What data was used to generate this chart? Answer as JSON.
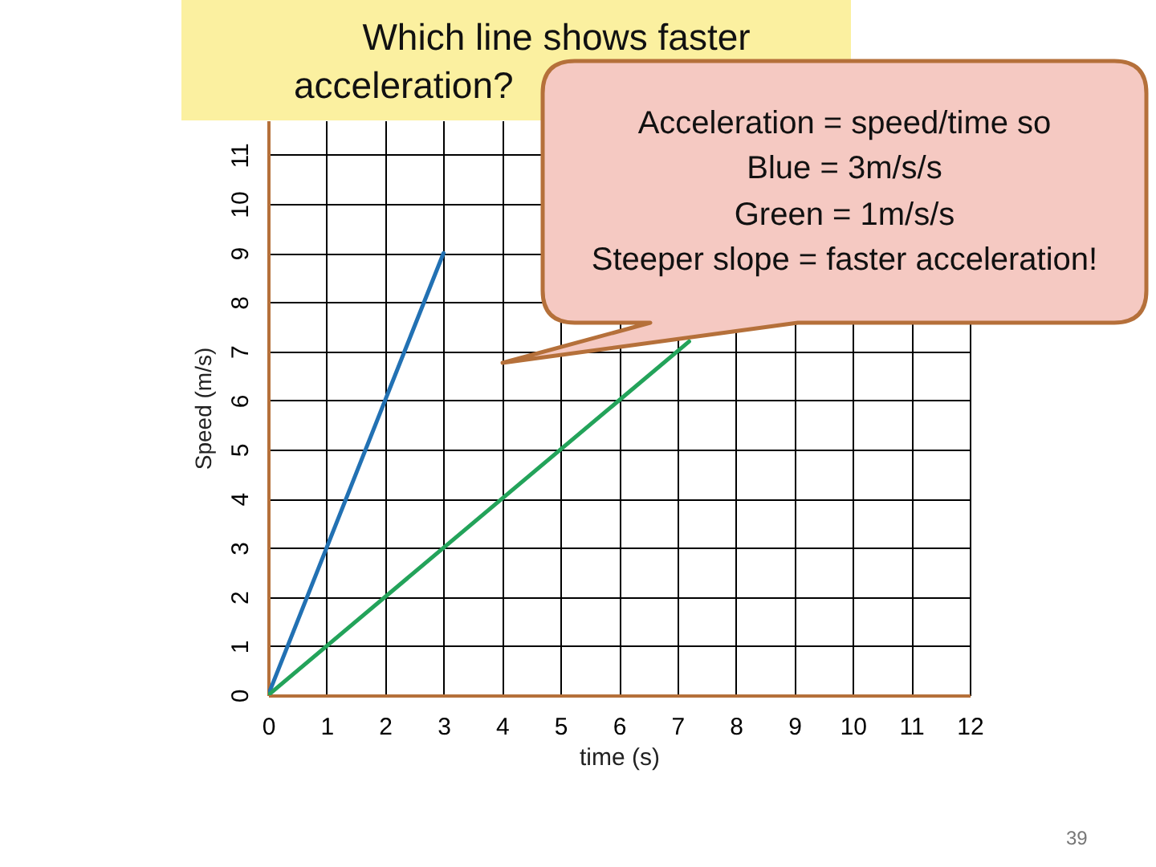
{
  "chart_data": {
    "type": "line",
    "title": "Which line shows faster acceleration?",
    "xlabel": "time (s)",
    "ylabel": "Speed (m/s)",
    "series": [
      {
        "color": "#2271b3",
        "x": [
          0,
          3
        ],
        "values": [
          0,
          9
        ]
      },
      {
        "color": "#23a35a",
        "x": [
          0,
          7.2
        ],
        "values": [
          0,
          7.2
        ]
      }
    ],
    "xlim": [
      0,
      12
    ],
    "xticks": [
      0,
      1,
      2,
      3,
      4,
      5,
      6,
      7,
      8,
      9,
      10,
      11,
      12
    ],
    "ylim": [
      0,
      11.7
    ],
    "yticks": [
      0,
      1,
      2,
      3,
      4,
      5,
      6,
      7,
      8,
      9,
      10,
      11
    ],
    "grid": true,
    "marker": "none",
    "line_style": "solid",
    "annotations": [
      "Acceleration = speed/time so",
      "Blue = 3m/s/s",
      "Green = 1m/s/s",
      "Steeper slope = faster acceleration!",
      "39"
    ]
  }
}
